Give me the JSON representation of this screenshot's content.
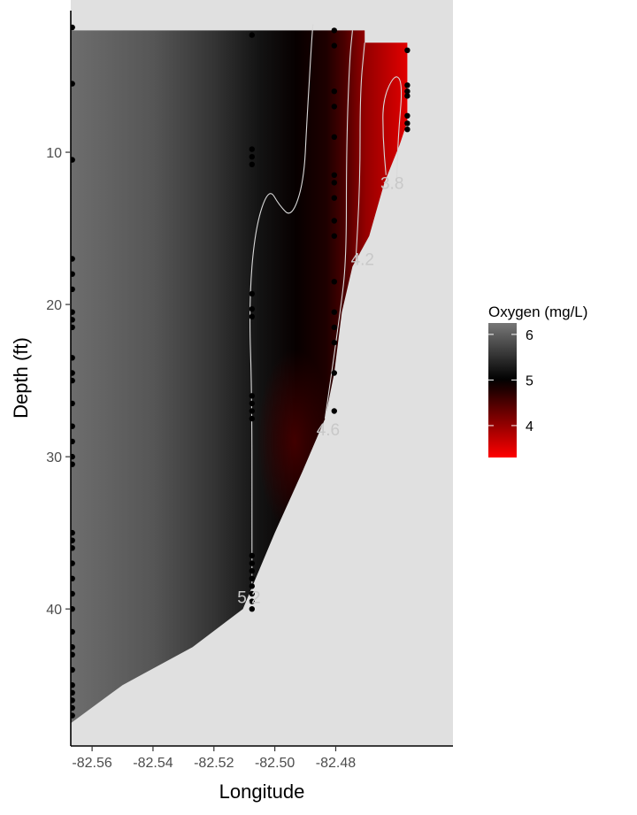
{
  "chart_data": {
    "type": "heatmap",
    "title": "",
    "xlabel": "Longitude",
    "ylabel": "Depth (ft)",
    "xlim": [
      -82.567,
      -82.4415
    ],
    "ylim": [
      49,
      0
    ],
    "y_reversed": true,
    "x_ticks": [
      -82.56,
      -82.54,
      -82.52,
      -82.5,
      -82.48
    ],
    "x_tick_labels": [
      "-82.56",
      "-82.54",
      "-82.52",
      "-82.50",
      "-82.48"
    ],
    "y_ticks": [
      10,
      20,
      30,
      40
    ],
    "y_tick_labels": [
      "10",
      "20",
      "30",
      "40"
    ],
    "legend": {
      "title": "Oxygen (mg/L)",
      "placement": "right",
      "ticks": [
        6,
        5,
        4
      ],
      "tick_labels": [
        "6",
        "5",
        "4"
      ],
      "range": [
        3.3,
        6.25
      ],
      "colors": {
        "low": "#ff0000",
        "mid": "#000000",
        "high": "#777777"
      },
      "midpoint": 5
    },
    "background_fill": "#e0e0e0",
    "bottom_profile": [
      {
        "x": -82.567,
        "depth": 47.5
      },
      {
        "x": -82.55,
        "depth": 45.0
      },
      {
        "x": -82.527,
        "depth": 42.5
      },
      {
        "x": -82.5105,
        "depth": 40.0
      },
      {
        "x": -82.5,
        "depth": 35.0
      },
      {
        "x": -82.491,
        "depth": 31.0
      },
      {
        "x": -82.4835,
        "depth": 27.5
      },
      {
        "x": -82.4805,
        "depth": 24.5
      },
      {
        "x": -82.478,
        "depth": 20.5
      },
      {
        "x": -82.4745,
        "depth": 17.5
      },
      {
        "x": -82.469,
        "depth": 15.5
      },
      {
        "x": -82.464,
        "depth": 12.0
      },
      {
        "x": -82.459,
        "depth": 9.5
      },
      {
        "x": -82.4565,
        "depth": 8.0
      },
      {
        "x": -82.4565,
        "depth": 2.5
      }
    ],
    "top_profile": [
      {
        "x": -82.567,
        "depth": 2.0
      },
      {
        "x": -82.4705,
        "depth": 2.0
      },
      {
        "x": -82.4705,
        "depth": 2.8
      },
      {
        "x": -82.4565,
        "depth": 2.8
      }
    ],
    "oxygen_profile": [
      {
        "x": -82.567,
        "value": 6.15
      },
      {
        "x": -82.54,
        "value": 5.9
      },
      {
        "x": -82.52,
        "value": 5.55
      },
      {
        "x": -82.505,
        "value": 5.2
      },
      {
        "x": -82.493,
        "value": 4.95
      },
      {
        "x": -82.483,
        "value": 4.8
      },
      {
        "x": -82.477,
        "value": 4.5
      },
      {
        "x": -82.473,
        "value": 4.2
      },
      {
        "x": -82.47,
        "value": 4.0
      },
      {
        "x": -82.4565,
        "value": 3.5
      }
    ],
    "low_oxygen_zone": {
      "x": -82.4935,
      "depth": 29.0,
      "value": 4.55
    },
    "contours": [
      {
        "label": "5.2",
        "label_at": {
          "x": -82.5085,
          "depth": 39.6
        },
        "points": [
          {
            "x": -82.5075,
            "depth": 40.0
          },
          {
            "x": -82.5075,
            "depth": 36.0
          },
          {
            "x": -82.5075,
            "depth": 26.0
          },
          {
            "x": -82.5085,
            "depth": 20.0
          },
          {
            "x": -82.5065,
            "depth": 15.0
          },
          {
            "x": -82.502,
            "depth": 12.3
          },
          {
            "x": -82.4985,
            "depth": 13.5
          },
          {
            "x": -82.4945,
            "depth": 14.3
          },
          {
            "x": -82.4905,
            "depth": 12.0
          },
          {
            "x": -82.4895,
            "depth": 8.0
          },
          {
            "x": -82.488,
            "depth": 3.0
          },
          {
            "x": -82.4875,
            "depth": 1.6
          }
        ]
      },
      {
        "label": "4.6",
        "label_at": {
          "x": -82.4825,
          "depth": 28.6
        },
        "points": [
          {
            "x": -82.4835,
            "depth": 27.5
          },
          {
            "x": -82.4785,
            "depth": 20.5
          },
          {
            "x": -82.4765,
            "depth": 17.0
          },
          {
            "x": -82.4765,
            "depth": 10.0
          },
          {
            "x": -82.4755,
            "depth": 4.0
          },
          {
            "x": -82.4745,
            "depth": 2.0
          }
        ]
      },
      {
        "label": "4.2",
        "label_at": {
          "x": -82.4712,
          "depth": 17.4
        },
        "points": [
          {
            "x": -82.4735,
            "depth": 17.5
          },
          {
            "x": -82.472,
            "depth": 12.0
          },
          {
            "x": -82.472,
            "depth": 6.0
          },
          {
            "x": -82.4705,
            "depth": 2.8
          }
        ]
      },
      {
        "label": "3.8",
        "label_at": {
          "x": -82.4615,
          "depth": 12.4
        },
        "points": [
          {
            "x": -82.4635,
            "depth": 11.5
          },
          {
            "x": -82.4645,
            "depth": 9.0
          },
          {
            "x": -82.4645,
            "depth": 6.5
          },
          {
            "x": -82.4605,
            "depth": 4.8
          },
          {
            "x": -82.458,
            "depth": 5.5
          },
          {
            "x": -82.4595,
            "depth": 9.0
          },
          {
            "x": -82.46,
            "depth": 12.0
          }
        ]
      }
    ],
    "sample_points": [
      {
        "x": -82.5665,
        "depths": [
          1.8,
          5.5,
          10.5,
          17.0,
          18.0,
          19.0,
          20.5,
          21.0,
          21.5,
          23.5,
          24.5,
          25.0,
          26.5,
          28.0,
          29.0,
          30.0,
          30.5,
          35.0,
          35.5,
          36.0,
          37.0,
          38.0,
          39.0,
          40.0,
          41.5,
          42.5,
          43.0,
          44.0,
          45.0,
          45.5,
          46.0,
          46.5,
          47.0
        ]
      },
      {
        "x": -82.5075,
        "depths": [
          2.3,
          9.8,
          10.3,
          10.8,
          19.3,
          20.3,
          20.8,
          26.0,
          26.5,
          27.0,
          27.5,
          36.5,
          37.0,
          37.5,
          38.0,
          38.5,
          39.0,
          39.5,
          40.0
        ]
      },
      {
        "x": -82.4805,
        "depths": [
          2.0,
          3.0,
          6.0,
          7.0,
          9.0,
          11.5,
          12.0,
          13.0,
          14.5,
          15.5,
          18.5,
          20.5,
          21.5,
          22.5,
          24.5,
          27.0
        ]
      },
      {
        "x": -82.4565,
        "depths": [
          3.3,
          5.6,
          6.0,
          6.3,
          7.6,
          8.1,
          8.5
        ]
      }
    ]
  }
}
